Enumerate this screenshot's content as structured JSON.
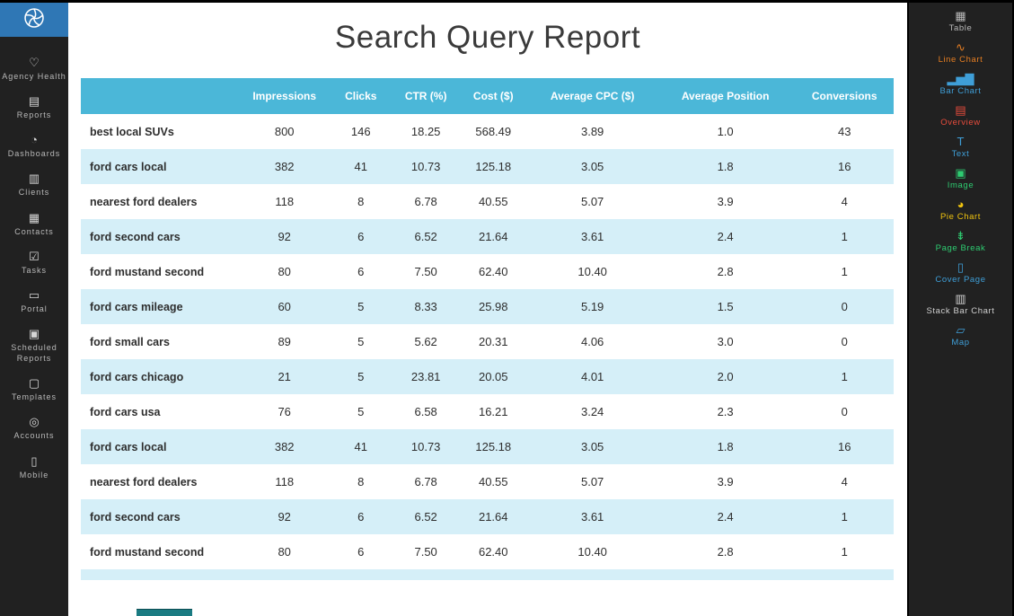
{
  "window": {
    "title": "Search Query Report"
  },
  "colors": {
    "table_header_bg": "#4bb7d8",
    "table_alt_row_bg": "#d5eff8",
    "logo_bg": "#2f77b5",
    "sidebar_bg": "#212121"
  },
  "left_sidebar": {
    "items": [
      {
        "id": "agency-health",
        "label": "Agency Health",
        "icon": "heart-icon",
        "glyph": "♡"
      },
      {
        "id": "reports",
        "label": "Reports",
        "icon": "report-document-icon",
        "glyph": "▤"
      },
      {
        "id": "dashboards",
        "label": "Dashboards",
        "icon": "dashboard-gauge-icon",
        "glyph": "◔"
      },
      {
        "id": "clients",
        "label": "Clients",
        "icon": "clients-list-icon",
        "glyph": "▥"
      },
      {
        "id": "contacts",
        "label": "Contacts",
        "icon": "contacts-card-icon",
        "glyph": "▦"
      },
      {
        "id": "tasks",
        "label": "Tasks",
        "icon": "checkbox-icon",
        "glyph": "☑"
      },
      {
        "id": "portal",
        "label": "Portal",
        "icon": "portal-screen-icon",
        "glyph": "▭"
      },
      {
        "id": "scheduled-reports",
        "label": "Scheduled Reports",
        "icon": "clock-document-icon",
        "glyph": "▣"
      },
      {
        "id": "templates",
        "label": "Templates",
        "icon": "templates-stack-icon",
        "glyph": "▢"
      },
      {
        "id": "accounts",
        "label": "Accounts",
        "icon": "accounts-target-icon",
        "glyph": "◎"
      },
      {
        "id": "mobile",
        "label": "Mobile",
        "icon": "mobile-phone-icon",
        "glyph": "▯"
      }
    ]
  },
  "table": {
    "headers": [
      "",
      "Impressions",
      "Clicks",
      "CTR (%)",
      "Cost ($)",
      "Average CPC ($)",
      "Average Position",
      "Conversions"
    ],
    "rows": [
      [
        "best local SUVs",
        "800",
        "146",
        "18.25",
        "568.49",
        "3.89",
        "1.0",
        "43"
      ],
      [
        "ford cars local",
        "382",
        "41",
        "10.73",
        "125.18",
        "3.05",
        "1.8",
        "16"
      ],
      [
        "nearest ford dealers",
        "118",
        "8",
        "6.78",
        "40.55",
        "5.07",
        "3.9",
        "4"
      ],
      [
        "ford second cars",
        "92",
        "6",
        "6.52",
        "21.64",
        "3.61",
        "2.4",
        "1"
      ],
      [
        "ford mustand second",
        "80",
        "6",
        "7.50",
        "62.40",
        "10.40",
        "2.8",
        "1"
      ],
      [
        "ford cars mileage",
        "60",
        "5",
        "8.33",
        "25.98",
        "5.19",
        "1.5",
        "0"
      ],
      [
        "ford small cars",
        "89",
        "5",
        "5.62",
        "20.31",
        "4.06",
        "3.0",
        "0"
      ],
      [
        "ford cars chicago",
        "21",
        "5",
        "23.81",
        "20.05",
        "4.01",
        "2.0",
        "1"
      ],
      [
        "ford cars usa",
        "76",
        "5",
        "6.58",
        "16.21",
        "3.24",
        "2.3",
        "0"
      ],
      [
        "ford cars local",
        "382",
        "41",
        "10.73",
        "125.18",
        "3.05",
        "1.8",
        "16"
      ],
      [
        "nearest ford dealers",
        "118",
        "8",
        "6.78",
        "40.55",
        "5.07",
        "3.9",
        "4"
      ],
      [
        "ford second cars",
        "92",
        "6",
        "6.52",
        "21.64",
        "3.61",
        "2.4",
        "1"
      ],
      [
        "ford mustand second",
        "80",
        "6",
        "7.50",
        "62.40",
        "10.40",
        "2.8",
        "1"
      ]
    ]
  },
  "right_sidebar": {
    "items": [
      {
        "id": "table",
        "label": "Table",
        "icon": "table-widget-icon",
        "glyph": "▦",
        "color": "#b9b9b9"
      },
      {
        "id": "line-chart",
        "label": "Line Chart",
        "icon": "line-chart-icon",
        "glyph": "∿",
        "color": "#e67e22"
      },
      {
        "id": "bar-chart",
        "label": "Bar Chart",
        "icon": "bar-chart-icon",
        "glyph": "▂▅▇",
        "color": "#3f9fd8"
      },
      {
        "id": "overview",
        "label": "Overview",
        "icon": "overview-icon",
        "glyph": "▤",
        "color": "#e74c3c"
      },
      {
        "id": "text",
        "label": "Text",
        "icon": "text-widget-icon",
        "glyph": "T",
        "color": "#3f9fd8"
      },
      {
        "id": "image",
        "label": "Image",
        "icon": "image-widget-icon",
        "glyph": "▣",
        "color": "#2ecc71"
      },
      {
        "id": "pie-chart",
        "label": "Pie Chart",
        "icon": "pie-chart-icon",
        "glyph": "◕",
        "color": "#f1c40f"
      },
      {
        "id": "page-break",
        "label": "Page Break",
        "icon": "page-break-icon",
        "glyph": "⇟",
        "color": "#2ecc71"
      },
      {
        "id": "cover-page",
        "label": "Cover Page",
        "icon": "cover-page-icon",
        "glyph": "▯",
        "color": "#3f9fd8"
      },
      {
        "id": "stack-bar-chart",
        "label": "Stack Bar Chart",
        "icon": "stacked-bar-chart-icon",
        "glyph": "▥",
        "color": "#d0d0d0"
      },
      {
        "id": "map",
        "label": "Map",
        "icon": "map-icon",
        "glyph": "▱",
        "color": "#3f9fd8"
      }
    ]
  }
}
